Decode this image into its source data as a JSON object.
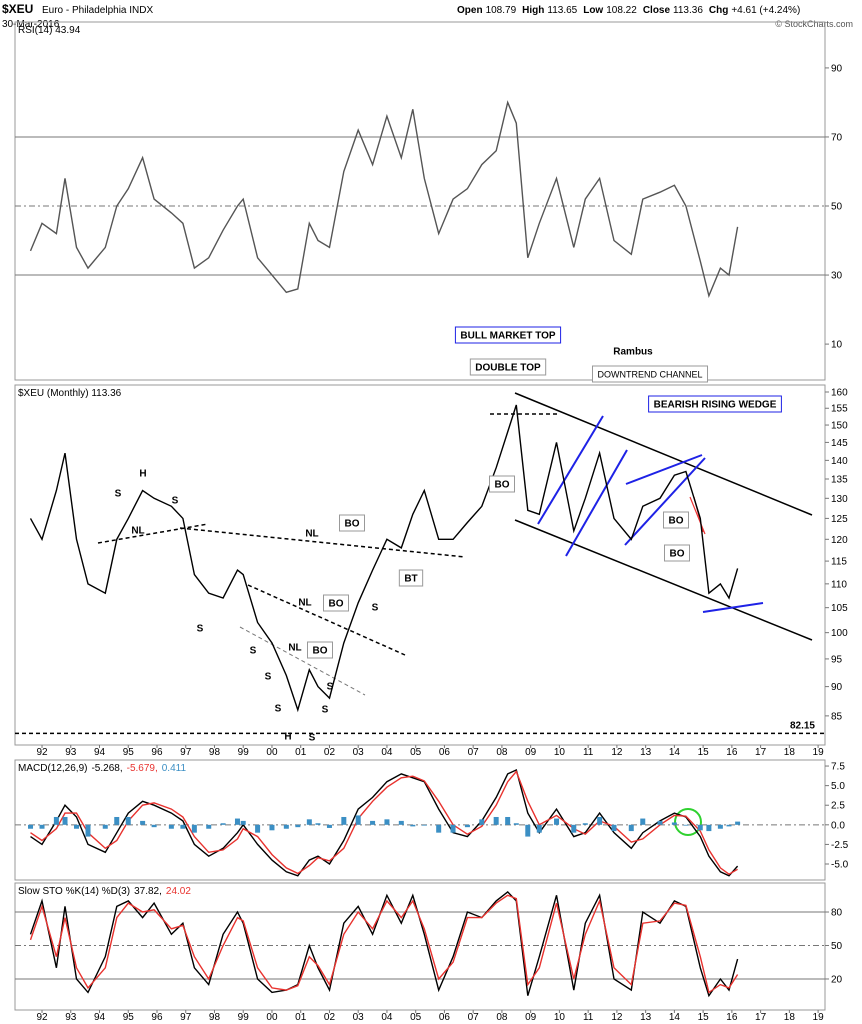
{
  "header": {
    "symbol": "$XEU",
    "name": "Euro - Philadelphia INDX",
    "date": "30-Mar-2016",
    "quote": [
      {
        "label": "Open",
        "value": 108.79
      },
      {
        "label": "High",
        "value": 113.65
      },
      {
        "label": "Low",
        "value": 108.22
      },
      {
        "label": "Close",
        "value": 113.36
      },
      {
        "label": "Chg",
        "value": "+4.61 (+4.24%)"
      }
    ],
    "credit": "© StockCharts.com"
  },
  "chart_data": [
    {
      "type": "line",
      "title": "RSI(14) 43.94",
      "x": [
        1991.6,
        1992.0,
        1992.5,
        1992.8,
        1993.2,
        1993.6,
        1994.2,
        1994.6,
        1995.0,
        1995.5,
        1995.9,
        1996.5,
        1996.9,
        1997.3,
        1997.8,
        1998.3,
        1998.8,
        1999.0,
        1999.5,
        2000.0,
        2000.5,
        2000.9,
        2001.3,
        2001.6,
        2002.0,
        2002.5,
        2003.0,
        2003.5,
        2004.0,
        2004.5,
        2004.9,
        2005.3,
        2005.8,
        2006.3,
        2006.8,
        2007.3,
        2007.8,
        2008.2,
        2008.5,
        2008.9,
        2009.3,
        2009.9,
        2010.5,
        2010.9,
        2011.4,
        2011.9,
        2012.5,
        2012.9,
        2013.5,
        2014.0,
        2014.4,
        2014.9,
        2015.2,
        2015.6,
        2015.9,
        2016.2
      ],
      "series": [
        {
          "color": "#555555",
          "values": [
            37,
            45,
            42,
            58,
            38,
            32,
            38,
            50,
            55,
            64,
            52,
            48,
            45,
            32,
            35,
            43,
            50,
            52,
            35,
            30,
            25,
            26,
            45,
            40,
            38,
            60,
            72,
            62,
            76,
            64,
            78,
            58,
            42,
            52,
            55,
            62,
            66,
            80,
            74,
            35,
            45,
            58,
            38,
            52,
            58,
            40,
            36,
            52,
            54,
            56,
            50,
            34,
            24,
            32,
            30,
            43.94
          ]
        }
      ],
      "xlim": [
        1991.06,
        2019.24
      ],
      "ylim": [
        -0.4,
        103.3
      ],
      "yticks": [
        10,
        30,
        50,
        70,
        90
      ],
      "reference_lines": [
        70,
        50,
        30
      ],
      "reference_dash": [
        false,
        true,
        false
      ]
    },
    {
      "type": "line",
      "title": "$XEU (Monthly) 113.36",
      "log_scale": true,
      "x": [
        1991.6,
        1992.0,
        1992.5,
        1992.8,
        1993.2,
        1993.6,
        1994.2,
        1994.6,
        1995.0,
        1995.5,
        1995.9,
        1996.5,
        1996.9,
        1997.3,
        1997.8,
        1998.3,
        1998.8,
        1999.0,
        1999.5,
        2000.0,
        2000.5,
        2000.9,
        2001.3,
        2001.6,
        2002.0,
        2002.5,
        2003.0,
        2003.5,
        2004.0,
        2004.5,
        2004.9,
        2005.3,
        2005.8,
        2006.3,
        2006.8,
        2007.3,
        2007.8,
        2008.2,
        2008.5,
        2008.9,
        2009.3,
        2009.9,
        2010.5,
        2010.9,
        2011.4,
        2011.9,
        2012.5,
        2012.9,
        2013.5,
        2014.0,
        2014.4,
        2014.9,
        2015.2,
        2015.6,
        2015.9,
        2016.2
      ],
      "series": [
        {
          "color": "#000000",
          "values": [
            125,
            120,
            132,
            142,
            120,
            110,
            108,
            120,
            125,
            132,
            130,
            128,
            125,
            112,
            108,
            107,
            113,
            112,
            102,
            98,
            92,
            86,
            93,
            90,
            88,
            98,
            106,
            113,
            120,
            118,
            126,
            132,
            120,
            120,
            124,
            128,
            138,
            148,
            156,
            127,
            126,
            145,
            122,
            130,
            142,
            125,
            120,
            128,
            130,
            136,
            137,
            125,
            108,
            110,
            107,
            113.36
          ]
        }
      ],
      "xlim": [
        1991.06,
        2019.24
      ],
      "ylim": [
        80.3,
        162.2
      ],
      "yticks": [
        85,
        90,
        95,
        100,
        105,
        110,
        115,
        120,
        125,
        130,
        135,
        140,
        145,
        150,
        155,
        160
      ],
      "xticks": [
        {
          "value": 1992,
          "label": "92"
        },
        {
          "value": 1993,
          "label": "93"
        },
        {
          "value": 1994,
          "label": "94"
        },
        {
          "value": 1995,
          "label": "95"
        },
        {
          "value": 1996,
          "label": "96"
        },
        {
          "value": 1997,
          "label": "97"
        },
        {
          "value": 1998,
          "label": "98"
        },
        {
          "value": 1999,
          "label": "99"
        },
        {
          "value": 2000,
          "label": "00"
        },
        {
          "value": 2001,
          "label": "01"
        },
        {
          "value": 2002,
          "label": "02"
        },
        {
          "value": 2003,
          "label": "03"
        },
        {
          "value": 2004,
          "label": "04"
        },
        {
          "value": 2005,
          "label": "05"
        },
        {
          "value": 2006,
          "label": "06"
        },
        {
          "value": 2007,
          "label": "07"
        },
        {
          "value": 2008,
          "label": "08"
        },
        {
          "value": 2009,
          "label": "09"
        },
        {
          "value": 2010,
          "label": "10"
        },
        {
          "value": 2011,
          "label": "11"
        },
        {
          "value": 2012,
          "label": "12"
        },
        {
          "value": 2013,
          "label": "13"
        },
        {
          "value": 2014,
          "label": "14"
        },
        {
          "value": 2015,
          "label": "15"
        },
        {
          "value": 2016,
          "label": "16"
        },
        {
          "value": 2017,
          "label": "17"
        },
        {
          "value": 2018,
          "label": "18"
        },
        {
          "value": 2019,
          "label": "19"
        }
      ],
      "support": 82.15,
      "annotations": [
        "H",
        "S",
        "S",
        "NL",
        "S",
        "NL",
        "BO",
        "BT",
        "S",
        "BO",
        "NL",
        "S",
        "NL",
        "BO",
        "S",
        "S",
        "S",
        "S",
        "H",
        "S",
        "BO",
        "BO",
        "BO",
        "BULL MARKET TOP",
        "DOUBLE TOP",
        "Rambus",
        "DOWNTREND CHANNEL",
        "BEARISH RISING WEDGE"
      ]
    },
    {
      "type": "line",
      "title": "MACD(12,26,9)",
      "readout": [
        "-5.268,",
        "-5.679,",
        "0.411"
      ],
      "x": [
        1991.6,
        1992.0,
        1992.5,
        1992.8,
        1993.2,
        1993.6,
        1994.2,
        1994.6,
        1995.0,
        1995.5,
        1995.9,
        1996.5,
        1996.9,
        1997.3,
        1997.8,
        1998.3,
        1998.8,
        1999.0,
        1999.5,
        2000.0,
        2000.5,
        2000.9,
        2001.3,
        2001.6,
        2002.0,
        2002.5,
        2003.0,
        2003.5,
        2004.0,
        2004.5,
        2004.9,
        2005.3,
        2005.8,
        2006.3,
        2006.8,
        2007.3,
        2007.8,
        2008.2,
        2008.5,
        2008.9,
        2009.3,
        2009.9,
        2010.5,
        2010.9,
        2011.4,
        2011.9,
        2012.5,
        2012.9,
        2013.5,
        2014.0,
        2014.4,
        2014.9,
        2015.2,
        2015.6,
        2015.9,
        2016.2
      ],
      "series": [
        {
          "color": "#000000",
          "values": [
            -1.5,
            -2.5,
            0.5,
            2.5,
            1.0,
            -2.5,
            -3.5,
            -1.0,
            1.5,
            3.0,
            2.5,
            1.5,
            0.5,
            -2.5,
            -4.0,
            -3.0,
            -1.0,
            0.0,
            -2.5,
            -4.5,
            -6.0,
            -6.5,
            -4.5,
            -4.0,
            -5.0,
            -2.0,
            2.0,
            3.5,
            5.5,
            6.5,
            6.0,
            5.5,
            2.0,
            -1.0,
            -1.5,
            0.5,
            3.5,
            6.5,
            7.0,
            1.5,
            -1.0,
            2.0,
            -1.5,
            -1.0,
            1.5,
            -1.0,
            -3.0,
            -1.0,
            0.5,
            1.5,
            1.0,
            -1.5,
            -4.0,
            -6.0,
            -6.5,
            -5.268
          ]
        },
        {
          "color": "#e8322e",
          "values": [
            -1.0,
            -2.0,
            -0.5,
            1.5,
            1.5,
            -1.0,
            -3.0,
            -2.0,
            0.5,
            2.5,
            2.8,
            2.0,
            1.0,
            -1.5,
            -3.5,
            -3.2,
            -1.8,
            -0.5,
            -1.5,
            -3.8,
            -5.5,
            -6.2,
            -5.2,
            -4.2,
            -4.6,
            -3.0,
            0.8,
            3.0,
            4.8,
            6.0,
            6.2,
            5.6,
            3.0,
            0.0,
            -1.2,
            -0.2,
            2.5,
            5.5,
            6.8,
            3.0,
            0.0,
            1.2,
            -0.5,
            -1.2,
            0.5,
            -0.2,
            -2.2,
            -1.8,
            0.0,
            1.2,
            1.1,
            -0.8,
            -3.2,
            -5.5,
            -6.3,
            -5.679
          ]
        },
        {
          "color": "#3b8fc4",
          "style": "histogram",
          "values": [
            -0.5,
            -0.5,
            1.0,
            1.0,
            -0.5,
            -1.5,
            -0.5,
            1.0,
            1.0,
            0.5,
            -0.3,
            -0.5,
            -0.5,
            -1.0,
            -0.5,
            0.2,
            0.8,
            0.5,
            -1.0,
            -0.7,
            -0.5,
            -0.3,
            0.7,
            0.2,
            -0.4,
            1.0,
            1.2,
            0.5,
            0.7,
            0.5,
            -0.2,
            -0.1,
            -1.0,
            -1.0,
            -0.3,
            0.7,
            1.0,
            1.0,
            0.2,
            -1.5,
            -1.0,
            0.8,
            -1.0,
            0.2,
            1.0,
            -0.8,
            -0.8,
            0.8,
            0.5,
            0.3,
            -0.1,
            -0.7,
            -0.8,
            -0.5,
            -0.2,
            0.411
          ]
        }
      ],
      "xlim": [
        1991.06,
        2019.24
      ],
      "ylim": [
        -7.04,
        8.27
      ],
      "yticks": [
        {
          "value": -5,
          "label": "-5.0"
        },
        -2.5,
        {
          "value": 0,
          "label": "0.0"
        },
        2.5,
        {
          "value": 5,
          "label": "5.0"
        },
        7.5
      ],
      "reference_lines": [
        0
      ],
      "reference_dash": [
        true
      ]
    },
    {
      "type": "line",
      "title": "Slow STO %K(14) %D(3)",
      "readout": [
        "37.82,",
        "24.02"
      ],
      "x": [
        1991.6,
        1992.0,
        1992.5,
        1992.8,
        1993.2,
        1993.6,
        1994.2,
        1994.6,
        1995.0,
        1995.5,
        1995.9,
        1996.5,
        1996.9,
        1997.3,
        1997.8,
        1998.3,
        1998.8,
        1999.0,
        1999.5,
        2000.0,
        2000.5,
        2000.9,
        2001.3,
        2001.6,
        2002.0,
        2002.5,
        2003.0,
        2003.5,
        2004.0,
        2004.5,
        2004.9,
        2005.3,
        2005.8,
        2006.3,
        2006.8,
        2007.3,
        2007.8,
        2008.2,
        2008.5,
        2008.9,
        2009.3,
        2009.9,
        2010.5,
        2010.9,
        2011.4,
        2011.9,
        2012.5,
        2012.9,
        2013.5,
        2014.0,
        2014.4,
        2014.9,
        2015.2,
        2015.6,
        2015.9,
        2016.2
      ],
      "series": [
        {
          "color": "#000000",
          "values": [
            60,
            90,
            30,
            85,
            20,
            8,
            40,
            85,
            90,
            75,
            88,
            60,
            70,
            30,
            15,
            60,
            80,
            70,
            20,
            8,
            10,
            15,
            50,
            30,
            10,
            70,
            85,
            60,
            95,
            70,
            95,
            60,
            10,
            40,
            80,
            75,
            90,
            98,
            90,
            5,
            40,
            95,
            10,
            70,
            95,
            20,
            10,
            80,
            70,
            90,
            85,
            30,
            5,
            20,
            10,
            37.82
          ]
        },
        {
          "color": "#e8322e",
          "values": [
            55,
            85,
            40,
            75,
            30,
            12,
            30,
            75,
            88,
            80,
            82,
            65,
            68,
            40,
            20,
            50,
            75,
            72,
            30,
            12,
            10,
            14,
            40,
            32,
            15,
            60,
            80,
            65,
            90,
            75,
            90,
            65,
            20,
            35,
            75,
            75,
            88,
            95,
            92,
            15,
            30,
            88,
            20,
            60,
            90,
            30,
            15,
            70,
            72,
            88,
            86,
            40,
            8,
            15,
            12,
            24.02
          ]
        }
      ],
      "xlim": [
        1991.06,
        2019.24
      ],
      "ylim": [
        -7.8,
        106
      ],
      "yticks": [
        20,
        50,
        80
      ],
      "reference_lines": [
        80,
        50,
        20
      ],
      "reference_dash": [
        false,
        true,
        false
      ],
      "xticks": [
        {
          "value": 1992,
          "label": "92"
        },
        {
          "value": 1993,
          "label": "93"
        },
        {
          "value": 1994,
          "label": "94"
        },
        {
          "value": 1995,
          "label": "95"
        },
        {
          "value": 1996,
          "label": "96"
        },
        {
          "value": 1997,
          "label": "97"
        },
        {
          "value": 1998,
          "label": "98"
        },
        {
          "value": 1999,
          "label": "99"
        },
        {
          "value": 2000,
          "label": "00"
        },
        {
          "value": 2001,
          "label": "01"
        },
        {
          "value": 2002,
          "label": "02"
        },
        {
          "value": 2003,
          "label": "03"
        },
        {
          "value": 2004,
          "label": "04"
        },
        {
          "value": 2005,
          "label": "05"
        },
        {
          "value": 2006,
          "label": "06"
        },
        {
          "value": 2007,
          "label": "07"
        },
        {
          "value": 2008,
          "label": "08"
        },
        {
          "value": 2009,
          "label": "09"
        },
        {
          "value": 2010,
          "label": "10"
        },
        {
          "value": 2011,
          "label": "11"
        },
        {
          "value": 2012,
          "label": "12"
        },
        {
          "value": 2013,
          "label": "13"
        },
        {
          "value": 2014,
          "label": "14"
        },
        {
          "value": 2015,
          "label": "15"
        },
        {
          "value": 2016,
          "label": "16"
        },
        {
          "value": 2017,
          "label": "17"
        },
        {
          "value": 2018,
          "label": "18"
        },
        {
          "value": 2019,
          "label": "19"
        }
      ]
    }
  ]
}
